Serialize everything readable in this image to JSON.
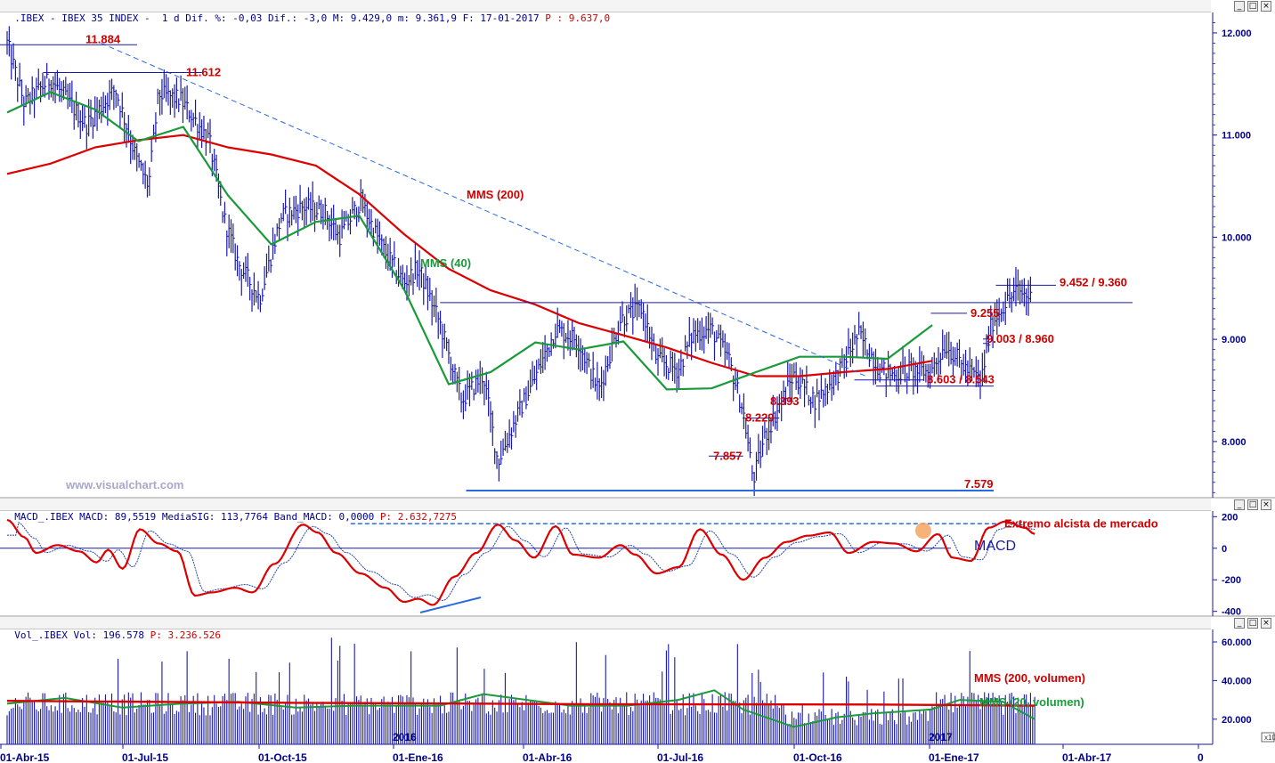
{
  "panels": {
    "price_header": {
      "parts": [
        ".IBEX - IBEX 35 INDEX -  1 d Dif. %: -0,03 Dif.: -3,0 M: 9.429,0 m: 9.361,9 F: 17-01-2017 ",
        "P : 9.637,0"
      ]
    },
    "macd_header": {
      "parts": [
        "MACD_.IBEX MACD: 89,5519 MediaSIG: 113,7764 Band_MACD: 0,0000 ",
        "P: 2.632,7275"
      ]
    },
    "vol_header": {
      "parts": [
        "Vol_.IBEX Vol: 196.578 ",
        "P: 3.236.526"
      ]
    }
  },
  "window_buttons": {
    "minimize": "_",
    "maximize": "□",
    "close": "×"
  },
  "watermark": "www.visualchart.com",
  "x_axis": {
    "labels": [
      "01-Abr-15",
      "01-Jul-15",
      "01-Oct-15",
      "01-Ene-16",
      "01-Abr-16",
      "01-Jul-16",
      "01-Oct-16",
      "01-Ene-17",
      "01-Abr-17",
      "0"
    ],
    "year_labels": [
      "2016",
      "2017"
    ]
  },
  "x10_label": "x10",
  "chart_data": [
    {
      "type": "line",
      "panel": "price",
      "y_ticks": [
        "12.000",
        "11.000",
        "10.000",
        "9.000",
        "8.000"
      ],
      "y_tick_values": [
        12000,
        11000,
        10000,
        9000,
        8000
      ],
      "ylim": [
        7450,
        12200
      ],
      "series": [
        {
          "name": "MMS (200)",
          "color": "#dd0000",
          "points": [
            [
              "01-Abr-15",
              10620
            ],
            [
              "01-May-15",
              10720
            ],
            [
              "01-Jun-15",
              10880
            ],
            [
              "01-Jul-15",
              10950
            ],
            [
              "01-Ago-15",
              11000
            ],
            [
              "01-Sep-15",
              10880
            ],
            [
              "01-Oct-15",
              10810
            ],
            [
              "01-Nov-15",
              10700
            ],
            [
              "01-Dic-15",
              10420
            ],
            [
              "01-Ene-16",
              10030
            ],
            [
              "01-Feb-16",
              9690
            ],
            [
              "01-Mar-16",
              9480
            ],
            [
              "01-Abr-16",
              9340
            ],
            [
              "01-May-16",
              9160
            ],
            [
              "01-Jun-16",
              9040
            ],
            [
              "01-Jul-16",
              8920
            ],
            [
              "01-Ago-16",
              8770
            ],
            [
              "01-Sep-16",
              8640
            ],
            [
              "01-Oct-16",
              8640
            ],
            [
              "01-Nov-16",
              8680
            ],
            [
              "01-Dic-16",
              8710
            ],
            [
              "01-Ene-17",
              8790
            ]
          ]
        },
        {
          "name": "MMS (40)",
          "color": "#1a9a3a",
          "points": [
            [
              "01-Abr-15",
              11220
            ],
            [
              "01-May-15",
              11420
            ],
            [
              "01-Jun-15",
              11250
            ],
            [
              "01-Jul-15",
              10940
            ],
            [
              "01-Ago-15",
              11080
            ],
            [
              "01-Sep-15",
              10410
            ],
            [
              "01-Oct-15",
              9930
            ],
            [
              "01-Nov-15",
              10150
            ],
            [
              "01-Dic-15",
              10210
            ],
            [
              "01-Ene-16",
              9490
            ],
            [
              "01-Feb-16",
              8560
            ],
            [
              "01-Mar-16",
              8680
            ],
            [
              "01-Abr-16",
              8970
            ],
            [
              "01-May-16",
              8900
            ],
            [
              "01-Jun-16",
              8980
            ],
            [
              "01-Jul-16",
              8510
            ],
            [
              "01-Ago-16",
              8520
            ],
            [
              "01-Sep-16",
              8680
            ],
            [
              "01-Oct-16",
              8830
            ],
            [
              "01-Nov-16",
              8830
            ],
            [
              "01-Dic-16",
              8810
            ],
            [
              "01-Ene-17",
              9140
            ]
          ]
        }
      ],
      "annotations": [
        {
          "text": "11.884",
          "value": 11884
        },
        {
          "text": "11.612",
          "value": 11612
        },
        {
          "text": "9.452 / 9.360",
          "value": 9452
        },
        {
          "text": "9.255",
          "value": 9255
        },
        {
          "text": "9.003 / 8.960",
          "value": 9003
        },
        {
          "text": "8.603 / 8.543",
          "value": 8603
        },
        {
          "text": "8.393",
          "value": 8393
        },
        {
          "text": "8.229",
          "value": 8229
        },
        {
          "text": "7.857",
          "value": 7857
        },
        {
          "text": "7.579",
          "value": 7579
        }
      ],
      "series_labels": [
        "MMS (200)",
        "MMS (40)"
      ]
    },
    {
      "type": "line",
      "panel": "macd",
      "y_ticks": [
        "200",
        "0",
        "-200",
        "-400"
      ],
      "y_tick_values": [
        200,
        0,
        -200,
        -400
      ],
      "ylim": [
        -430,
        230
      ],
      "series": [
        {
          "name": "MACD",
          "color": "#dd0000"
        },
        {
          "name": "MediaSIG",
          "color": "#2244aa"
        }
      ],
      "annotations": [
        "Extremo alcista de mercado",
        "MACD"
      ],
      "extreme_level": 155
    },
    {
      "type": "bar",
      "panel": "volume",
      "y_ticks": [
        "60.000",
        "40.000",
        "20.000"
      ],
      "y_tick_values": [
        60000,
        40000,
        20000
      ],
      "ylim": [
        7000,
        66000
      ],
      "unit_multiplier": "x10",
      "series": [
        {
          "name": "MMS (200, volumen)",
          "color": "#dd0000"
        },
        {
          "name": "MMS (20, volumen)",
          "color": "#1a9a3a"
        }
      ]
    }
  ]
}
